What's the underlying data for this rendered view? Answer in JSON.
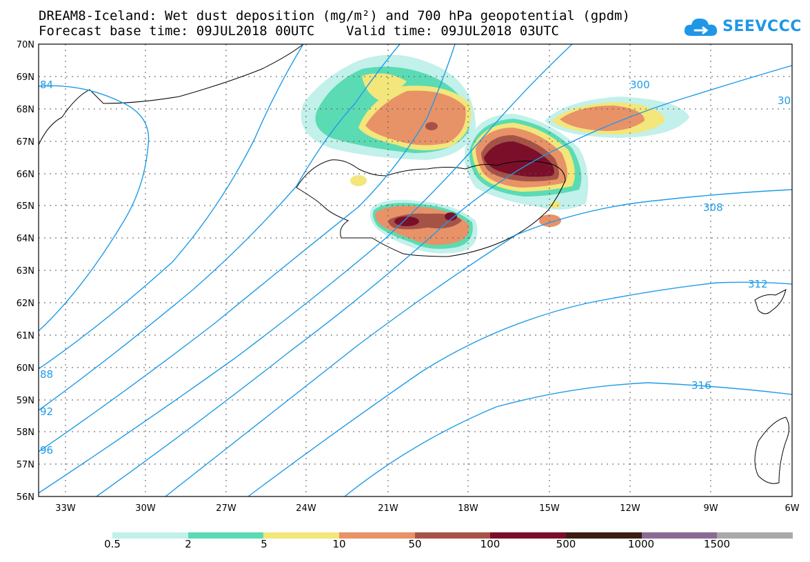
{
  "title": {
    "line1": "DREAM8-Iceland: Wet dust deposition (mg/m²) and 700 hPa geopotential (gpdm)",
    "line2": "Forecast base time: 09JUL2018 00UTC    Valid time: 09JUL2018 03UTC"
  },
  "logo": {
    "text": "SEEVCCC",
    "icon": "cloud-logo-icon",
    "color": "#1f97e6"
  },
  "map": {
    "lat_labels": [
      "70N",
      "69N",
      "68N",
      "67N",
      "66N",
      "65N",
      "64N",
      "63N",
      "62N",
      "61N",
      "60N",
      "59N",
      "58N",
      "57N",
      "56N"
    ],
    "lon_labels": [
      "33W",
      "30W",
      "27W",
      "24W",
      "21W",
      "18W",
      "15W",
      "12W",
      "9W",
      "6W"
    ],
    "contour_labels": [
      "84",
      "300",
      "30",
      "308",
      "312",
      "88",
      "92",
      "316",
      "96"
    ],
    "contour_color": "#1e9be6"
  },
  "colorbar": {
    "colors": [
      "#c2f0ea",
      "#5bdbb3",
      "#f3e67a",
      "#e89268",
      "#a65347",
      "#7b0f2a",
      "#3b1d14",
      "#8c6a96",
      "#a9a9a9"
    ],
    "labels": [
      "0.5",
      "2",
      "5",
      "10",
      "50",
      "100",
      "500",
      "1000",
      "1500"
    ]
  }
}
